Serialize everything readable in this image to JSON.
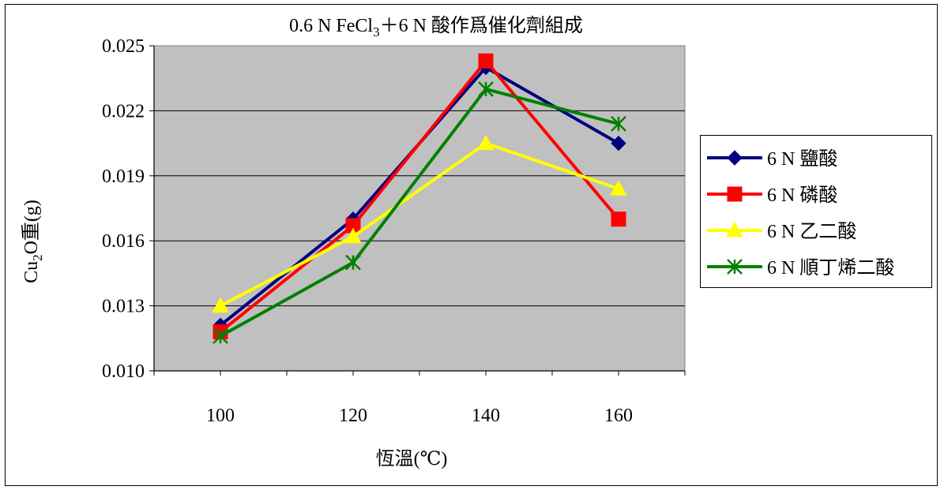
{
  "chart_data": {
    "type": "line",
    "title": {
      "prefix": "0.6 N FeCl",
      "sub": "3",
      "suffix": "＋6 N 酸作爲催化劑組成"
    },
    "xlabel": "恆溫(℃)",
    "ylabel": {
      "prefix": "Cu",
      "sub": "2",
      "suffix": "O重(g)"
    },
    "x": [
      100,
      120,
      140,
      160
    ],
    "xlim": [
      90,
      170
    ],
    "x_tick_labels": [
      "100",
      "120",
      "140",
      "160"
    ],
    "ylim": [
      0.01,
      0.025
    ],
    "y_tick_values": [
      0.01,
      0.013,
      0.016,
      0.019,
      0.022,
      0.025
    ],
    "y_tick_labels": [
      "0.010",
      "0.013",
      "0.016",
      "0.019",
      "0.022",
      "0.025"
    ],
    "grid": true,
    "plot_background": "#c0c0c0",
    "legend_position": "right",
    "series": [
      {
        "name": "6 N 鹽酸",
        "color": "#000080",
        "marker": "diamond",
        "values": [
          0.0121,
          0.017,
          0.024,
          0.0205
        ]
      },
      {
        "name": "6 N 磷酸",
        "color": "#ff0000",
        "marker": "square",
        "values": [
          0.0118,
          0.0167,
          0.0243,
          0.017
        ]
      },
      {
        "name": "6 N 乙二酸",
        "color": "#ffff00",
        "marker": "triangle",
        "values": [
          0.013,
          0.0162,
          0.0205,
          0.0184
        ]
      },
      {
        "name": "6 N 順丁烯二酸",
        "color": "#008000",
        "marker": "asterisk",
        "values": [
          0.0116,
          0.015,
          0.023,
          0.0214
        ]
      }
    ]
  }
}
